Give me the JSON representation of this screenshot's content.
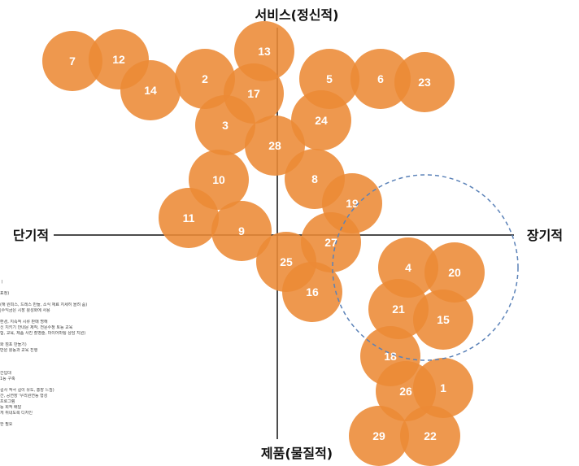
{
  "axes": {
    "top": "서비스(정신적)",
    "bottom": "제품(물질적)",
    "left": "단기적",
    "right": "장기적"
  },
  "colors": {
    "circle": "#ec8a35",
    "circle_text": "#ffffff",
    "ring": "#5b82b8"
  },
  "items": [
    "7",
    "12",
    "14",
    "2",
    "13",
    "17",
    "5",
    "6",
    "23",
    "3",
    "24",
    "28",
    "10",
    "8",
    "19",
    "11",
    "9",
    "27",
    "25",
    "16",
    "4",
    "20",
    "21",
    "15",
    "18",
    "26",
    "1",
    "29",
    "22"
  ],
  "side_notes": [
    "ㅣ",
    "",
    "표정)",
    "",
    "(해 원피스, 드레스 만듦, 소식 재료 지세히 올려 줌)",
    "|수익금은 시장 활성화에 사용",
    "",
    "환경, 지속적 시류 판매 명해",
    "신 지키기 안내문 제작, 전문수정 토등 교육",
    "험, 교육, 제품 사진 촬영술, 마이어마팅 상담 지원)",
    "",
    "화 점포 만들기)",
    "만원 활동과 교육 진행",
    "",
    "",
    "",
    "간입대",
    "1등 구축",
    "",
    "길사 적극 길이 유도, 홍장 느낌)",
    "간, 공연장 '우리원연동 형성",
    "프로그램",
    "등 회적 배달",
    "게 쥐내도록 디자인",
    "",
    "한 필요"
  ]
}
